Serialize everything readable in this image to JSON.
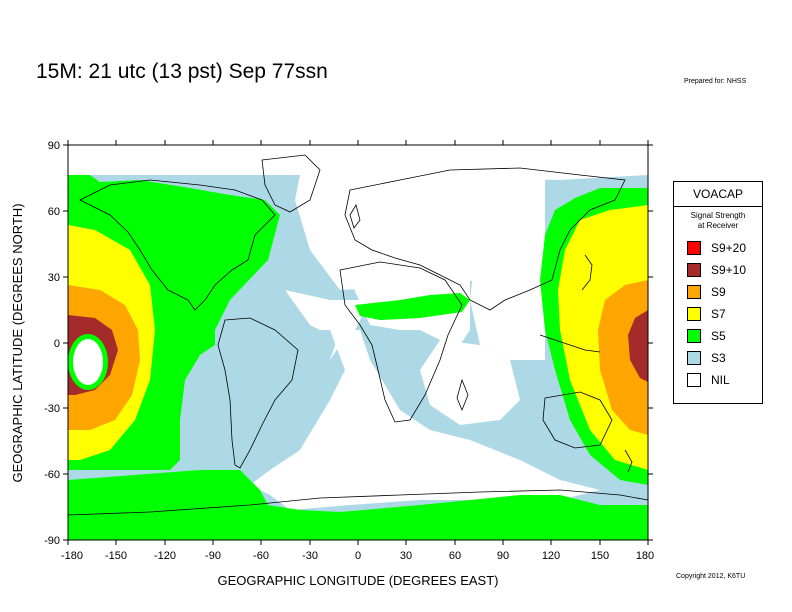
{
  "title": "15M:  21 utc (13 pst) Sep 77ssn",
  "prepared_for": "Prepared for: NHSS",
  "copyright": "Copyright 2012, K6TU",
  "map": {
    "x_axis_label": "GEOGRAPHIC LONGITUDE (DEGREES EAST)",
    "y_axis_label": "GEOGRAPHIC LATITUDE (DEGREES NORTH)",
    "x_ticks": [
      "-180",
      "-150",
      "-120",
      "-90",
      "-60",
      "-30",
      "0",
      "30",
      "60",
      "90",
      "120",
      "150",
      "180"
    ],
    "y_ticks": [
      "90",
      "60",
      "30",
      "0",
      "-30",
      "-60",
      "-90"
    ],
    "lon_range": [
      -180,
      180
    ],
    "lat_range": [
      -90,
      90
    ]
  },
  "legend": {
    "title": "VOACAP",
    "subtitle": "Signal Strength\nat Receiver",
    "items": [
      {
        "label": "S9+20",
        "color": "#ff0000"
      },
      {
        "label": "S9+10",
        "color": "#a52a2a"
      },
      {
        "label": "S9",
        "color": "#ffa500"
      },
      {
        "label": "S7",
        "color": "#ffff00"
      },
      {
        "label": "S5",
        "color": "#00ff00"
      },
      {
        "label": "S3",
        "color": "#add8e6"
      },
      {
        "label": "NIL",
        "color": "#ffffff"
      }
    ]
  },
  "colors": {
    "s9_10": "#a52a2a",
    "s9": "#ffa500",
    "s7": "#ffff00",
    "s5": "#00ff00",
    "s3": "#add8e6",
    "nil": "#ffffff"
  }
}
